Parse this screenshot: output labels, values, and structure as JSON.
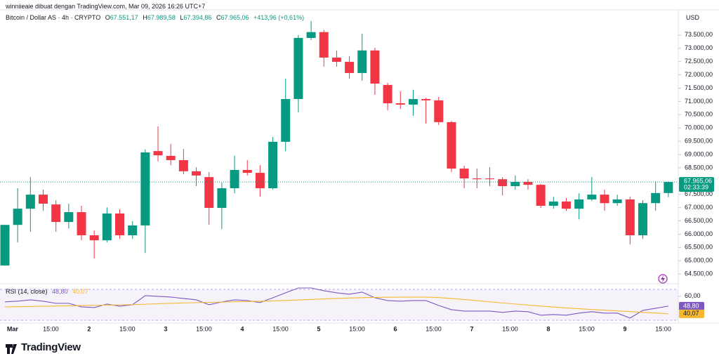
{
  "header": {
    "attribution": "winniieaie dibuat dengan TradingView.com, Mar 09, 2026 16:26 UTC+7",
    "currency": "USD"
  },
  "footer": {
    "brand": "TradingView"
  },
  "chart_data": [
    {
      "type": "candlestick",
      "legend": {
        "symbol": "Bitcoin / Dollar AS · 4h · CRYPTO",
        "open": {
          "key": "O",
          "label": "67.551,17"
        },
        "high": {
          "key": "H",
          "label": "67.989,58"
        },
        "low": {
          "key": "L",
          "label": "67.394,86"
        },
        "close": {
          "key": "C",
          "label": "67.965,06"
        },
        "change": "+413,96 (+0,61%)"
      },
      "countdown": "02:33:39",
      "up_color": "#089981",
      "down_color": "#f23645",
      "categories": [
        null,
        "Mar",
        null,
        null,
        "15:00",
        null,
        null,
        "2",
        null,
        null,
        "15:00",
        null,
        null,
        "3",
        null,
        null,
        "15:00",
        null,
        null,
        "4",
        null,
        null,
        "15:00",
        null,
        null,
        "5",
        null,
        null,
        "15:00",
        null,
        null,
        "6",
        null,
        null,
        "15:00",
        null,
        null,
        "7",
        null,
        null,
        "15:00",
        null,
        null,
        "8",
        null,
        null,
        "15:00",
        null,
        null,
        "9",
        null,
        null,
        "15:00"
      ],
      "open": [
        64820,
        66350,
        66960,
        67490,
        67120,
        66460,
        66830,
        65960,
        65770,
        66780,
        65960,
        66330,
        69130,
        68950,
        68790,
        68370,
        68150,
        66990,
        67730,
        68420,
        68310,
        67730,
        69480,
        71090,
        73390,
        73610,
        72650,
        72490,
        72070,
        72920,
        71620,
        70930,
        70880,
        71090,
        71040,
        70220,
        68470,
        68100,
        68100,
        68070,
        67810,
        67970,
        67860,
        67070,
        67230,
        66960,
        67310,
        67490,
        67170,
        67310,
        65960,
        67170,
        67551.17
      ],
      "high": [
        66350,
        67730,
        68150,
        67680,
        67280,
        67150,
        67070,
        66140,
        67010,
        66940,
        66490,
        69190,
        70060,
        69400,
        69210,
        68520,
        68340,
        67940,
        68950,
        68790,
        68600,
        69660,
        71860,
        73500,
        74030,
        73690,
        72920,
        72710,
        73550,
        73020,
        71700,
        71380,
        71440,
        71140,
        71170,
        70270,
        68580,
        68470,
        68520,
        68150,
        68210,
        68070,
        67890,
        67410,
        67360,
        67540,
        68150,
        67680,
        67490,
        67410,
        67280,
        67990,
        67989.58
      ],
      "low": [
        64820,
        65690,
        66090,
        66880,
        66090,
        66220,
        65770,
        65080,
        65690,
        65820,
        65820,
        65290,
        68740,
        68600,
        68260,
        67810,
        66350,
        66190,
        67540,
        68210,
        67410,
        67680,
        69130,
        70590,
        73310,
        72310,
        72310,
        71860,
        71780,
        71250,
        70670,
        70720,
        70460,
        70160,
        70110,
        68340,
        67730,
        67730,
        67810,
        67460,
        67680,
        67680,
        66990,
        66960,
        66880,
        66560,
        67250,
        66880,
        67070,
        65610,
        65820,
        66880,
        67394.86
      ],
      "close": [
        66350,
        66960,
        67490,
        67150,
        66460,
        66830,
        65960,
        65770,
        66780,
        65960,
        66330,
        69080,
        68970,
        68790,
        68370,
        68210,
        66990,
        67730,
        68420,
        68310,
        67730,
        69480,
        71090,
        73390,
        73610,
        72650,
        72490,
        72070,
        72920,
        71670,
        70930,
        70880,
        71090,
        71040,
        70220,
        68470,
        68100,
        68070,
        68070,
        67810,
        67970,
        67860,
        67070,
        67230,
        66960,
        67310,
        67490,
        67170,
        67310,
        65960,
        67170,
        67550,
        67965.06
      ],
      "ylim": [
        64240,
        74290
      ],
      "yticks": [
        {
          "value": 64500,
          "label": "64.500,00"
        },
        {
          "value": 65000,
          "label": "65.000,00"
        },
        {
          "value": 65500,
          "label": "65.500,00"
        },
        {
          "value": 66000,
          "label": "66.000,00"
        },
        {
          "value": 66500,
          "label": "66.500,00"
        },
        {
          "value": 67000,
          "label": "67.000,00"
        },
        {
          "value": 67500,
          "label": "67.500,00"
        },
        {
          "value": 68500,
          "label": "68.500,00"
        },
        {
          "value": 69000,
          "label": "69.000,00"
        },
        {
          "value": 69500,
          "label": "69.500,00"
        },
        {
          "value": 70000,
          "label": "70.000,00"
        },
        {
          "value": 70500,
          "label": "70.500,00"
        },
        {
          "value": 71000,
          "label": "71.000,00"
        },
        {
          "value": 71500,
          "label": "71.500,00"
        },
        {
          "value": 72000,
          "label": "72.000,00"
        },
        {
          "value": 72500,
          "label": "72.500,00"
        },
        {
          "value": 73000,
          "label": "73.000,00"
        },
        {
          "value": 73500,
          "label": "73.500,00"
        }
      ]
    },
    {
      "type": "line",
      "title": "RSI (14, close)",
      "series": [
        {
          "color": "#7e57c2",
          "values": [
            53.6,
            54.4,
            55.9,
            54.4,
            52.0,
            52.0,
            48.0,
            47.2,
            51.2,
            48.8,
            50.4,
            60.7,
            59.9,
            59.1,
            57.5,
            55.9,
            50.4,
            53.6,
            55.9,
            55.1,
            52.8,
            58.3,
            63.9,
            69.4,
            69.4,
            66.3,
            63.9,
            62.3,
            64.7,
            58.3,
            55.1,
            54.4,
            55.1,
            55.1,
            49.6,
            44.8,
            43.2,
            43.2,
            43.2,
            41.7,
            43.2,
            42.5,
            38.5,
            39.3,
            38.5,
            40.9,
            42.5,
            40.9,
            40.9,
            35.3,
            44.0,
            46.4,
            48.8
          ],
          "value_labels": [
            null,
            null,
            null,
            null,
            null,
            null,
            null,
            null,
            null,
            null,
            null,
            null,
            null,
            null,
            null,
            null,
            null,
            null,
            null,
            null,
            null,
            null,
            null,
            null,
            null,
            null,
            null,
            null,
            null,
            null,
            null,
            null,
            null,
            null,
            null,
            null,
            null,
            null,
            null,
            null,
            null,
            null,
            null,
            null,
            null,
            null,
            null,
            null,
            null,
            null,
            null,
            null,
            "48,80"
          ]
        },
        {
          "color": "#f5b82e",
          "values": [
            48.0,
            48.2,
            48.5,
            48.7,
            49.0,
            49.2,
            49.5,
            49.7,
            50.0,
            50.2,
            50.5,
            51.0,
            51.5,
            52.0,
            52.4,
            52.8,
            53.1,
            53.4,
            53.7,
            54.0,
            54.3,
            54.7,
            55.2,
            55.8,
            56.4,
            57.0,
            57.5,
            58.0,
            58.4,
            58.7,
            58.9,
            59.0,
            59.0,
            59.0,
            58.5,
            57.5,
            56.3,
            55.0,
            53.7,
            52.4,
            51.2,
            50.0,
            48.9,
            47.8,
            46.8,
            45.9,
            45.0,
            44.2,
            43.4,
            42.6,
            41.8,
            41.0,
            40.07
          ],
          "value_labels": [
            null,
            null,
            null,
            null,
            null,
            null,
            null,
            null,
            null,
            null,
            null,
            null,
            null,
            null,
            null,
            null,
            null,
            null,
            null,
            null,
            null,
            null,
            null,
            null,
            null,
            null,
            null,
            null,
            null,
            null,
            null,
            null,
            null,
            null,
            null,
            null,
            null,
            null,
            null,
            null,
            null,
            null,
            null,
            null,
            null,
            null,
            null,
            null,
            null,
            null,
            null,
            null,
            "40,07"
          ]
        }
      ],
      "ylim": [
        32,
        71
      ],
      "yticks": [
        {
          "value": 60,
          "label": "60,00"
        }
      ]
    }
  ]
}
